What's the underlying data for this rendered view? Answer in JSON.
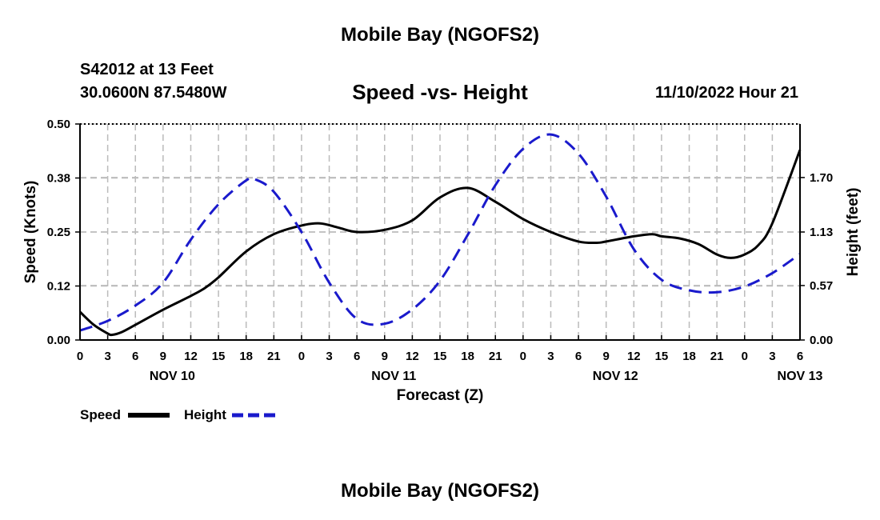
{
  "header": {
    "title_top": "Mobile Bay (NGOFS2)",
    "station": "S42012 at 13 Feet",
    "coords": "30.0600N  87.5480W",
    "subtitle": "Speed -vs- Height",
    "datetime": "11/10/2022 Hour 21"
  },
  "footer": {
    "title_bottom": "Mobile Bay (NGOFS2)"
  },
  "legend": {
    "speed_label": "Speed",
    "height_label": "Height"
  },
  "colors": {
    "speed": "#000000",
    "height": "#1a1acc",
    "grid": "#bbbbbb"
  },
  "chart_data": {
    "type": "line",
    "title": "Speed -vs- Height",
    "xlabel": "Forecast (Z)",
    "ylabel": "Speed (Knots)",
    "y2label": "Height (feet)",
    "xlim": [
      0,
      78
    ],
    "ylim": [
      0,
      0.5
    ],
    "y2lim": [
      0,
      2.26
    ],
    "x_tick_labels": [
      "0",
      "3",
      "6",
      "9",
      "12",
      "15",
      "18",
      "21",
      "0",
      "3",
      "6",
      "9",
      "12",
      "15",
      "18",
      "21",
      "0",
      "3",
      "6",
      "9",
      "12",
      "15",
      "18",
      "21",
      "0",
      "3",
      "6"
    ],
    "date_labels": [
      {
        "label": "NOV 10",
        "x": 10
      },
      {
        "label": "NOV 11",
        "x": 34
      },
      {
        "label": "NOV 12",
        "x": 58
      },
      {
        "label": "NOV 13",
        "x": 78
      }
    ],
    "y_tick_labels": [
      "0.00",
      "0.12",
      "0.25",
      "0.38",
      "0.50"
    ],
    "y_tick_values": [
      0,
      0.125,
      0.25,
      0.375,
      0.5
    ],
    "y2_tick_labels": [
      "0.00",
      "0.57",
      "1.13",
      "1.70"
    ],
    "y2_tick_values": [
      0,
      0.57,
      1.13,
      1.7
    ],
    "series": [
      {
        "name": "Speed",
        "axis": "left",
        "style": "solid",
        "x": [
          0,
          1.5,
          3,
          3.5,
          4.5,
          6,
          9,
          12,
          13.5,
          15,
          18,
          21,
          24,
          26,
          28,
          30,
          33,
          36,
          39,
          42,
          45,
          48,
          51,
          54,
          56,
          57,
          60,
          62,
          63,
          65,
          67,
          69,
          70.5,
          72,
          73.5,
          75,
          78
        ],
        "values": [
          0.065,
          0.035,
          0.015,
          0.012,
          0.018,
          0.035,
          0.07,
          0.102,
          0.12,
          0.145,
          0.205,
          0.245,
          0.265,
          0.27,
          0.26,
          0.25,
          0.255,
          0.277,
          0.33,
          0.352,
          0.32,
          0.28,
          0.25,
          0.228,
          0.225,
          0.228,
          0.24,
          0.245,
          0.24,
          0.235,
          0.222,
          0.198,
          0.19,
          0.198,
          0.22,
          0.27,
          0.44
        ]
      },
      {
        "name": "Height",
        "axis": "right",
        "style": "dashed",
        "x": [
          0,
          3,
          6,
          9,
          12,
          15,
          18,
          19,
          21,
          24,
          27,
          30,
          33,
          36,
          39,
          42,
          45,
          48,
          51,
          54,
          57,
          60,
          63,
          66,
          69,
          72,
          75,
          78
        ],
        "values": [
          0.1,
          0.2,
          0.36,
          0.6,
          1.05,
          1.42,
          1.67,
          1.68,
          1.55,
          1.13,
          0.6,
          0.22,
          0.17,
          0.32,
          0.62,
          1.1,
          1.62,
          2.0,
          2.15,
          1.95,
          1.5,
          0.95,
          0.63,
          0.52,
          0.5,
          0.56,
          0.7,
          0.9
        ]
      }
    ]
  }
}
